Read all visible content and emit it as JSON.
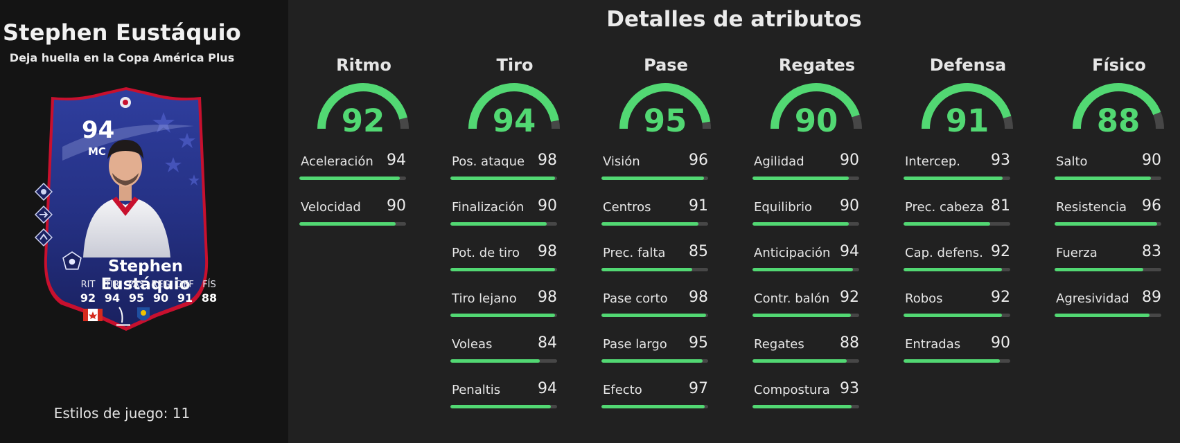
{
  "player": {
    "name": "Stephen Eustáquio",
    "subtitle": "Deja huella en la Copa América Plus",
    "styles_label": "Estilos de juego: 11"
  },
  "card": {
    "rating": "94",
    "position": "MC",
    "name": "Stephen Eustáquio",
    "stats": [
      {
        "label": "RIT",
        "value": "92"
      },
      {
        "label": "TIR",
        "value": "94"
      },
      {
        "label": "PAS",
        "value": "95"
      },
      {
        "label": "REG",
        "value": "90"
      },
      {
        "label": "DEF",
        "value": "91"
      },
      {
        "label": "FÍS",
        "value": "88"
      }
    ],
    "badges": [
      "canada-flag-icon",
      "liga-portugal-logo",
      "fc-porto-crest"
    ],
    "colors": {
      "card_blue": "#24307a",
      "accent_red": "#c8102e"
    }
  },
  "attributes_title": "Detalles de atributos",
  "colors": {
    "accent": "#52d873",
    "track": "#474747",
    "background": "#212121",
    "left_panel": "#141414"
  },
  "categories": [
    {
      "title": "Ritmo",
      "value": "92",
      "items": [
        {
          "label": "Aceleración",
          "value": "94"
        },
        {
          "label": "Velocidad",
          "value": "90"
        }
      ]
    },
    {
      "title": "Tiro",
      "value": "94",
      "items": [
        {
          "label": "Pos. ataque",
          "value": "98"
        },
        {
          "label": "Finalización",
          "value": "90"
        },
        {
          "label": "Pot. de tiro",
          "value": "98"
        },
        {
          "label": "Tiro lejano",
          "value": "98"
        },
        {
          "label": "Voleas",
          "value": "84"
        },
        {
          "label": "Penaltis",
          "value": "94"
        }
      ]
    },
    {
      "title": "Pase",
      "value": "95",
      "items": [
        {
          "label": "Visión",
          "value": "96"
        },
        {
          "label": "Centros",
          "value": "91"
        },
        {
          "label": "Prec. falta",
          "value": "85"
        },
        {
          "label": "Pase corto",
          "value": "98"
        },
        {
          "label": "Pase largo",
          "value": "95"
        },
        {
          "label": "Efecto",
          "value": "97"
        }
      ]
    },
    {
      "title": "Regates",
      "value": "90",
      "items": [
        {
          "label": "Agilidad",
          "value": "90"
        },
        {
          "label": "Equilibrio",
          "value": "90"
        },
        {
          "label": "Anticipación",
          "value": "94"
        },
        {
          "label": "Contr. balón",
          "value": "92"
        },
        {
          "label": "Regates",
          "value": "88"
        },
        {
          "label": "Compostura",
          "value": "93"
        }
      ]
    },
    {
      "title": "Defensa",
      "value": "91",
      "items": [
        {
          "label": "Intercep.",
          "value": "93"
        },
        {
          "label": "Prec. cabeza",
          "value": "81"
        },
        {
          "label": "Cap. defens.",
          "value": "92"
        },
        {
          "label": "Robos",
          "value": "92"
        },
        {
          "label": "Entradas",
          "value": "90"
        }
      ]
    },
    {
      "title": "Físico",
      "value": "88",
      "items": [
        {
          "label": "Salto",
          "value": "90"
        },
        {
          "label": "Resistencia",
          "value": "96"
        },
        {
          "label": "Fuerza",
          "value": "83"
        },
        {
          "label": "Agresividad",
          "value": "89"
        }
      ]
    }
  ]
}
